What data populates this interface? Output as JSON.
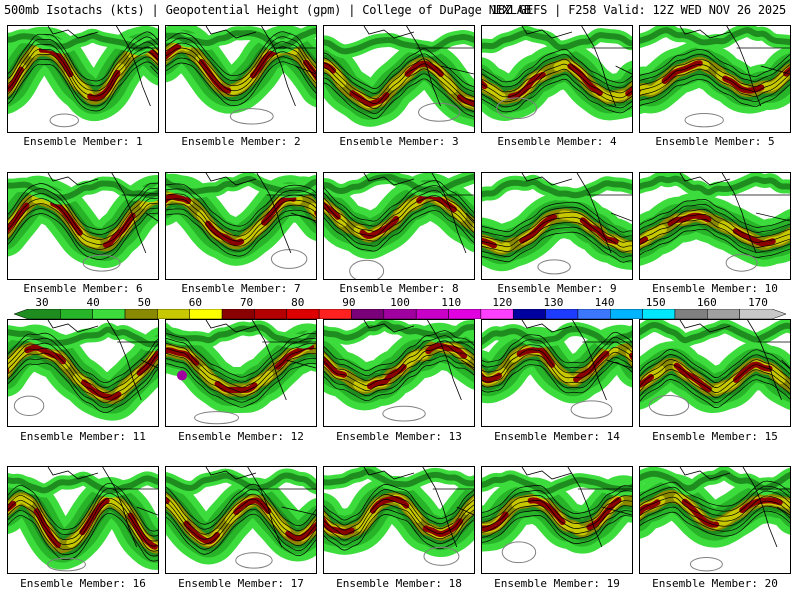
{
  "header": {
    "left": "500mb Isotachs (kts) | Geopotential Height (gpm) | College of DuPage NEXLAB",
    "right": "18Z GEFS | F258 Valid: 12Z WED NOV 26 2025"
  },
  "members": [
    {
      "caption": "Ensemble Member: 1"
    },
    {
      "caption": "Ensemble Member: 2"
    },
    {
      "caption": "Ensemble Member: 3"
    },
    {
      "caption": "Ensemble Member: 4"
    },
    {
      "caption": "Ensemble Member: 5"
    },
    {
      "caption": "Ensemble Member: 6"
    },
    {
      "caption": "Ensemble Member: 7"
    },
    {
      "caption": "Ensemble Member: 8"
    },
    {
      "caption": "Ensemble Member: 9"
    },
    {
      "caption": "Ensemble Member: 10"
    },
    {
      "caption": "Ensemble Member: 11"
    },
    {
      "caption": "Ensemble Member: 12"
    },
    {
      "caption": "Ensemble Member: 13"
    },
    {
      "caption": "Ensemble Member: 14"
    },
    {
      "caption": "Ensemble Member: 15"
    },
    {
      "caption": "Ensemble Member: 16"
    },
    {
      "caption": "Ensemble Member: 17"
    },
    {
      "caption": "Ensemble Member: 18"
    },
    {
      "caption": "Ensemble Member: 19"
    },
    {
      "caption": "Ensemble Member: 20"
    }
  ],
  "colorbar": {
    "labels": [
      "30",
      "40",
      "50",
      "60",
      "70",
      "80",
      "90",
      "100",
      "110",
      "120",
      "130",
      "140",
      "150",
      "160",
      "170"
    ],
    "colors": [
      "#1e8c1e",
      "#28b428",
      "#3cdc3c",
      "#8a8a00",
      "#c8c800",
      "#ffff00",
      "#8b0000",
      "#b40000",
      "#dc0000",
      "#ff2020",
      "#7a007a",
      "#a000a0",
      "#c800c8",
      "#e000e0",
      "#ff40ff",
      "#0000a0",
      "#1e3cff",
      "#3c78ff",
      "#00b4ff",
      "#00e6ff",
      "#808080",
      "#a0a0a0",
      "#c8c8c8"
    ]
  },
  "palette": {
    "light_green": "#3cdc3c",
    "mid_green": "#28b428",
    "dark_green": "#1e8c1e",
    "olive": "#8a8a00",
    "yellow": "#c8c800",
    "dark_red": "#8b0000",
    "red": "#b40000",
    "magenta": "#a000a0",
    "height_contour": "#000000",
    "low_contour": "#808080",
    "border": "#000000"
  }
}
